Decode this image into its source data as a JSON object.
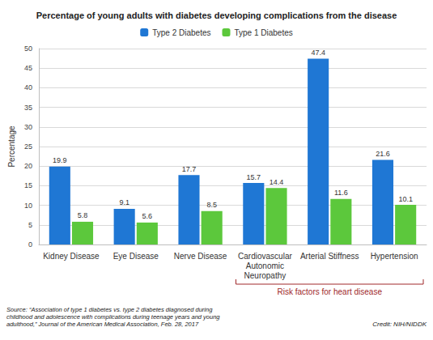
{
  "chart_data": {
    "type": "bar",
    "title": "Percentage of young adults with diabetes developing complications from the disease",
    "categories": [
      "Kidney Disease",
      "Eye Disease",
      "Nerve Disease",
      "Cardiovascular\nAutonomic\nNeuropathy",
      "Arterial Stiffness",
      "Hypertension"
    ],
    "series": [
      {
        "name": "Type 2 Diabetes",
        "color": "#1f77d4",
        "values": [
          19.9,
          9.1,
          17.7,
          15.7,
          47.4,
          21.6
        ]
      },
      {
        "name": "Type 1 Diabetes",
        "color": "#5cc83c",
        "values": [
          5.8,
          5.6,
          8.5,
          14.4,
          11.6,
          10.1
        ]
      }
    ],
    "y_label": "Percentage",
    "ylim": [
      0,
      50
    ],
    "yticks": [
      0,
      5,
      10,
      15,
      20,
      25,
      30,
      35,
      40,
      45,
      50
    ],
    "grid": true,
    "legend": "top",
    "data_labels": true,
    "annotations": [
      {
        "text": "Risk factors for heart disease",
        "color": "#a0282a",
        "categories": [
          "Cardiovascular\nAutonomic\nNeuropathy",
          "Arterial Stiffness",
          "Hypertension"
        ]
      }
    ],
    "source": "Source: “Association of type 1 diabetes vs. type 2 diabetes diagnosed during\nchildhood and adolescence with complications during teenage years and young\nadulthood,” Journal of the American Medical Association, Feb. 28, 2017",
    "credit": "Credit: NIH/NIDDK"
  }
}
